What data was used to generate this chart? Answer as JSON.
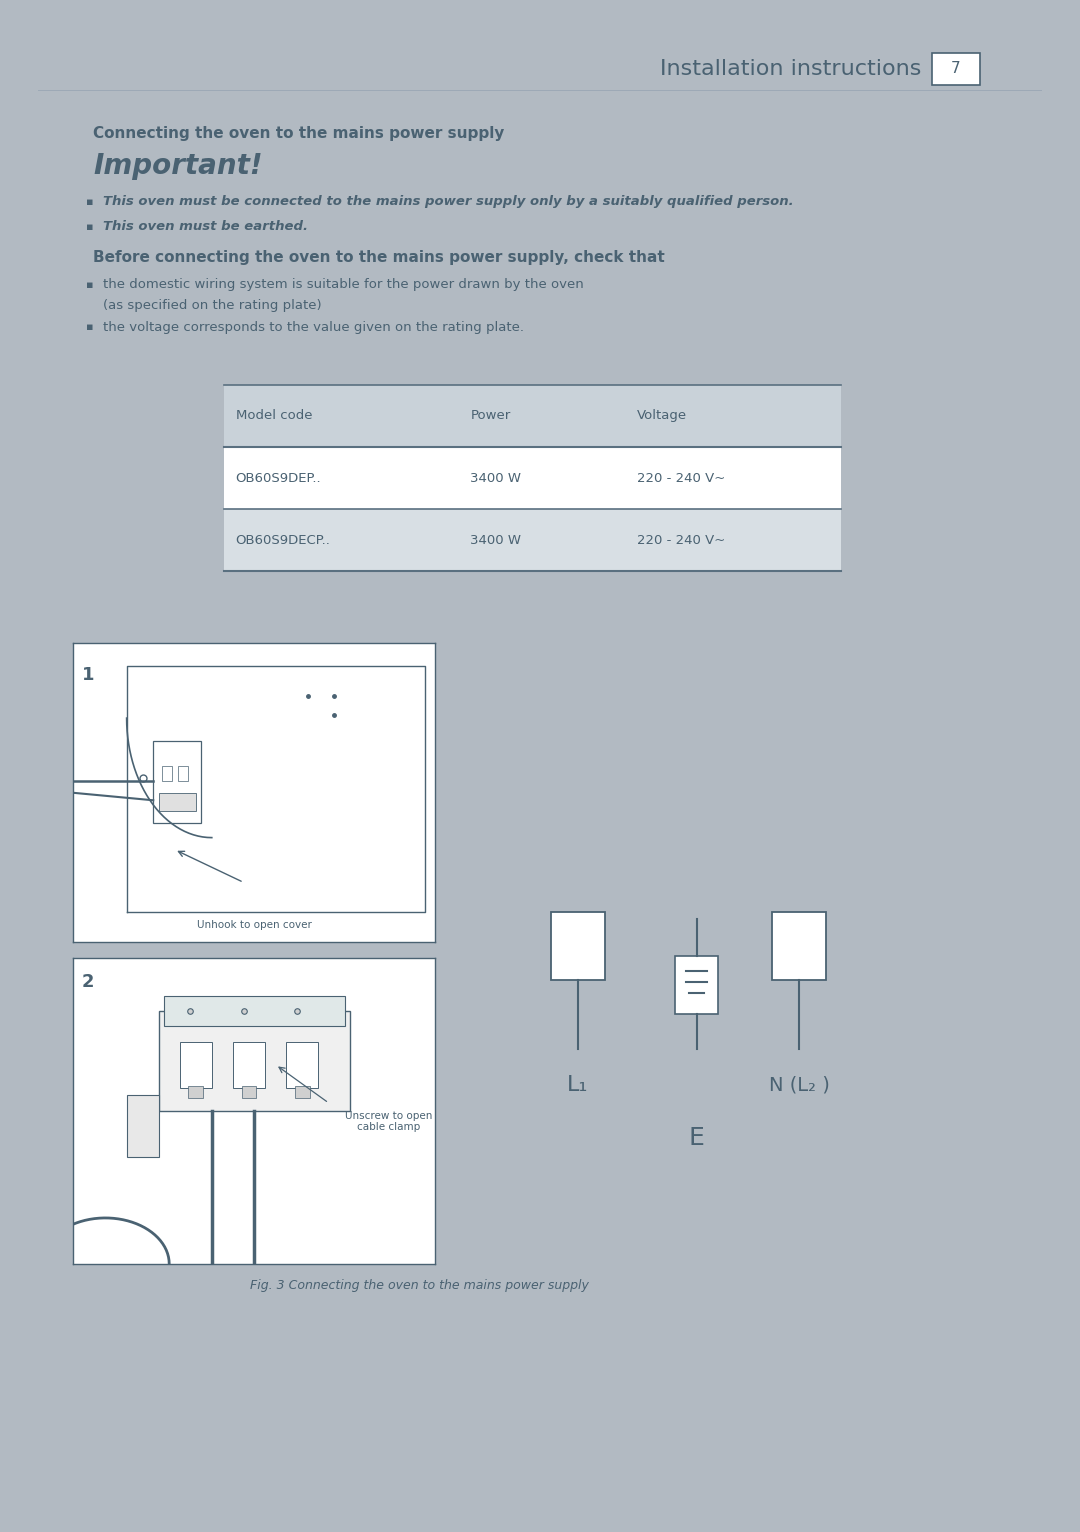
{
  "page_bg": "#b2bac2",
  "doc_bg": "#ffffff",
  "text_color": "#4a6272",
  "header_title": "Installation instructions",
  "header_num": "7",
  "section_title": "Connecting the oven to the mains power supply",
  "important_title": "Important!",
  "bullet1": "This oven must be connected to the mains power supply only by a suitably qualified person.",
  "bullet2": "This oven must be earthed.",
  "before_title": "Before connecting the oven to the mains power supply, check that",
  "before_bullet1_line1": "the domestic wiring system is suitable for the power drawn by the oven",
  "before_bullet1_line2": "(as specified on the rating plate)",
  "before_bullet2": "the voltage corresponds to the value given on the rating plate.",
  "table_header": [
    "Model code",
    "Power",
    "Voltage"
  ],
  "table_rows": [
    [
      "OB60S9DEP..",
      "3400 W",
      "220 - 240 V~"
    ],
    [
      "OB60S9DECP..",
      "3400 W",
      "220 - 240 V~"
    ]
  ],
  "table_header_bg": "#c9d2d9",
  "table_row_bg": "#d8dfe4",
  "table_border_color": "#5a7080",
  "fig_caption": "Fig. 3 Connecting the oven to the mains power supply",
  "label_L1": "L₁",
  "label_NL2": "N (L₂ )",
  "label_E": "E",
  "unhook_label": "Unhook to open cover",
  "unscrew_label1": "Unscrew to open",
  "unscrew_label2": "cable clamp"
}
